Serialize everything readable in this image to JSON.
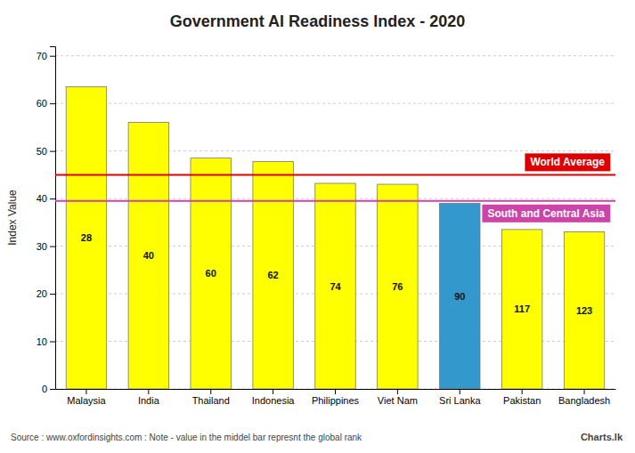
{
  "chart_data": {
    "type": "bar",
    "title": "Government AI Readiness Index - 2020",
    "categories": [
      "Malaysia",
      "India",
      "Thailand",
      "Indonesia",
      "Philippines",
      "Viet Nam",
      "Sri Lanka",
      "Pakistan",
      "Bangladesh"
    ],
    "values": [
      63.5,
      56.0,
      48.5,
      47.8,
      43.2,
      43.0,
      39.0,
      33.5,
      33.0
    ],
    "ranks": [
      28,
      40,
      60,
      62,
      74,
      76,
      90,
      117,
      123
    ],
    "colors": [
      "#FFFF00",
      "#FFFF00",
      "#FFFF00",
      "#FFFF00",
      "#FFFF00",
      "#FFFF00",
      "#3399CC",
      "#FFFF00",
      "#FFFF00"
    ],
    "reference_lines": [
      {
        "label": "World Average",
        "value": 45.0,
        "color": "#DD0000"
      },
      {
        "label": "South and Central Asia",
        "value": 39.5,
        "color": "#CC44AA"
      }
    ],
    "ylabel": "Index Value",
    "ylim": [
      0,
      72
    ],
    "yticks": [
      0,
      10,
      20,
      30,
      40,
      50,
      60,
      70
    ],
    "grid": true,
    "source": "Source : www.oxfordinsights.com : Note - value in the middel bar represnt the global rank",
    "credit": "Charts.lk"
  }
}
